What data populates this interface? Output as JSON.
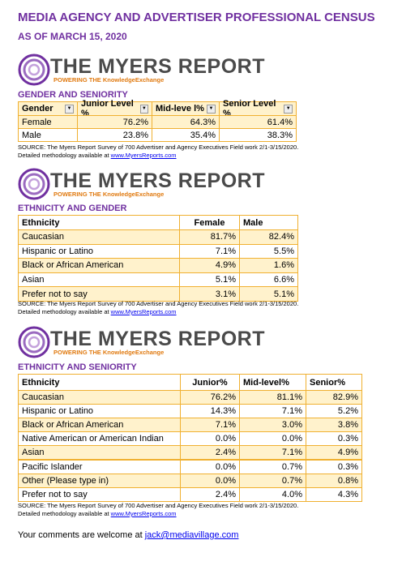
{
  "header": {
    "title": "MEDIA AGENCY AND ADVERTISER PROFESSIONAL CENSUS",
    "subtitle": "AS OF MARCH 15, 2020"
  },
  "logo": {
    "name": "THE MYERS REPORT",
    "tagline": "POWERING THE KnowledgeExchange"
  },
  "sections": [
    {
      "heading": "GENDER AND SENIORITY",
      "table": {
        "columns": [
          "Gender",
          "Junior Level %",
          "Mid-leve l%",
          "Senior Level %"
        ],
        "rows": [
          [
            "Female",
            "76.2%",
            "64.3%",
            "61.4%"
          ],
          [
            "Male",
            "23.8%",
            "35.4%",
            "38.3%"
          ]
        ]
      },
      "source": [
        "SOURCE: The Myers Report Survey of 700 Advertiser and Agency Executives Field work 2/1-3/15/2020.",
        "Detailed methodology available at"
      ],
      "link": "www.MyersReports.com"
    },
    {
      "heading": "ETHNICITY AND GENDER",
      "table": {
        "columns": [
          "Ethnicity",
          "Female",
          "Male"
        ],
        "rows": [
          [
            "Caucasian",
            "81.7%",
            "82.4%"
          ],
          [
            "Hispanic or Latino",
            "7.1%",
            "5.5%"
          ],
          [
            "Black or African American",
            "4.9%",
            "1.6%"
          ],
          [
            "Asian",
            "5.1%",
            "6.6%"
          ],
          [
            "Prefer not to say",
            "3.1%",
            "5.1%"
          ]
        ]
      },
      "source": [
        "SOURCE: The Myers Report Survey of 700 Advertiser and Agency Executives Field work 2/1-3/15/2020.",
        "Detailed methodology available at"
      ],
      "link": "www.MyersReports.com"
    },
    {
      "heading": "ETHNICITY AND SENIORITY",
      "table": {
        "columns": [
          "Ethnicity",
          "Junior%",
          "Mid-level%",
          "Senior%"
        ],
        "rows": [
          [
            "Caucasian",
            "76.2%",
            "81.1%",
            "82.9%"
          ],
          [
            "Hispanic or Latino",
            "14.3%",
            "7.1%",
            "5.2%"
          ],
          [
            "Black or African American",
            "7.1%",
            "3.0%",
            "3.8%"
          ],
          [
            "Native American or American Indian",
            "0.0%",
            "0.0%",
            "0.3%"
          ],
          [
            "Asian",
            "2.4%",
            "7.1%",
            "4.9%"
          ],
          [
            "Pacific Islander",
            "0.0%",
            "0.7%",
            "0.3%"
          ],
          [
            "Other (Please type in)",
            "0.0%",
            "0.7%",
            "0.8%"
          ],
          [
            "Prefer not to say",
            "2.4%",
            "4.0%",
            "4.3%"
          ]
        ]
      },
      "source": [
        "SOURCE: The Myers Report Survey of 700 Advertiser and Agency Executives Field work 2/1-3/15/2020.",
        "Detailed methodology available at"
      ],
      "link": "www.MyersReports.com"
    }
  ],
  "footer": {
    "text": "Your comments are welcome at",
    "email": "jack@mediavillage.com"
  }
}
